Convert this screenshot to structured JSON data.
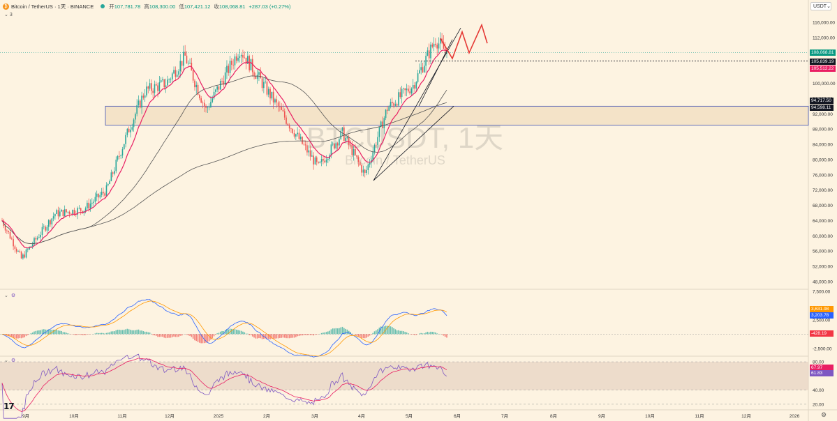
{
  "header": {
    "symbol_title": "Bitcoin / TetherUS · 1天 · BINANCE",
    "ohlc": [
      {
        "k": "开",
        "v": "107,781.78"
      },
      {
        "k": "高",
        "v": "108,300.00"
      },
      {
        "k": "低",
        "v": "107,421.12"
      },
      {
        "k": "收",
        "v": "108,068.81"
      },
      {
        "k": "",
        "v": "+287.03 (+0.27%)"
      }
    ],
    "indicator_count": "3"
  },
  "currency_selector": "USDT",
  "watermark": {
    "line1": "BTCUSDT, 1天",
    "line2": "Bitcoin / TetherUS"
  },
  "price_axis": [
    "116,000.00",
    "112,000.00",
    "108,000.00",
    "104,000.00",
    "100,000.00",
    "96,000.00",
    "92,000.00",
    "88,000.00",
    "84,000.00",
    "80,000.00",
    "76,000.00",
    "72,000.00",
    "68,000.00",
    "64,000.00",
    "60,000.00",
    "56,000.00",
    "52,000.00",
    "48,000.00"
  ],
  "price_tags": [
    {
      "label": "108,068.81",
      "color": "#089981"
    },
    {
      "label": "105,839.19",
      "color": "#131722"
    },
    {
      "label": "105,512.22",
      "color": "#e91e63"
    },
    {
      "label": "94,717.50",
      "color": "#131722"
    },
    {
      "label": "94,598.11",
      "color": "#131722"
    }
  ],
  "macd_axis": [
    "7,500.00",
    "2,500.00",
    "-2,500.00"
  ],
  "macd_tags": [
    {
      "label": "3,631.98",
      "color": "#ff9800"
    },
    {
      "label": "3,203.78",
      "color": "#2962ff"
    },
    {
      "label": "-428.19",
      "color": "#f23645"
    }
  ],
  "rsi_axis": [
    "80.00",
    "40.00",
    "20.00"
  ],
  "rsi_tags": [
    {
      "label": "67.97",
      "color": "#e91e63"
    },
    {
      "label": "61.83",
      "color": "#7e57c2"
    }
  ],
  "time_axis": [
    "9月",
    "10月",
    "11月",
    "12月",
    "2025",
    "2月",
    "3月",
    "4月",
    "5月",
    "6月",
    "7月",
    "8月",
    "9月",
    "10月",
    "11月",
    "12月",
    "2026"
  ],
  "colors": {
    "up": "#26a69a",
    "down": "#ef5350",
    "ema_short": "#e91e63",
    "ma_long": "#555555",
    "box_fill": "#f2dfc3",
    "box_stroke": "#3f51b5",
    "projection": "#e53935"
  },
  "icons": {
    "pane_collapse": "chevron-down-icon",
    "pane_settings": "gear-icon",
    "logo": "tradingview-logo",
    "settings": "gear-icon"
  },
  "chart_data": {
    "type": "candlestick",
    "symbol": "BTCUSDT",
    "interval": "1天",
    "ohlc_last": {
      "open": 107781.78,
      "high": 108300.0,
      "low": 107421.12,
      "close": 108068.81,
      "change": 287.03,
      "change_pct": 0.27
    },
    "ylim": [
      48000,
      116000
    ],
    "approx_closes": [
      [
        "2024-08-25",
        64000
      ],
      [
        "2024-09-06",
        54000
      ],
      [
        "2024-09-27",
        65800
      ],
      [
        "2024-10-15",
        67000
      ],
      [
        "2024-10-29",
        72000
      ],
      [
        "2024-11-12",
        88000
      ],
      [
        "2024-11-22",
        98000
      ],
      [
        "2024-12-05",
        100000
      ],
      [
        "2024-12-17",
        107000
      ],
      [
        "2024-12-30",
        93000
      ],
      [
        "2025-01-20",
        109000
      ],
      [
        "2025-01-31",
        102000
      ],
      [
        "2025-02-25",
        86000
      ],
      [
        "2025-03-10",
        78000
      ],
      [
        "2025-03-25",
        87000
      ],
      [
        "2025-04-08",
        76000
      ],
      [
        "2025-04-22",
        93500
      ],
      [
        "2025-05-08",
        99500
      ],
      [
        "2025-05-22",
        111500
      ],
      [
        "2025-05-29",
        108068.81
      ]
    ],
    "horizontal_levels": [
      105839.19,
      94717.5,
      94598.11
    ],
    "zone": {
      "from": 89000,
      "to": 94000
    },
    "macd_ylim": [
      -3500,
      7500
    ],
    "rsi_ylim": [
      15,
      85
    ],
    "rsi_band": [
      40,
      80
    ]
  }
}
